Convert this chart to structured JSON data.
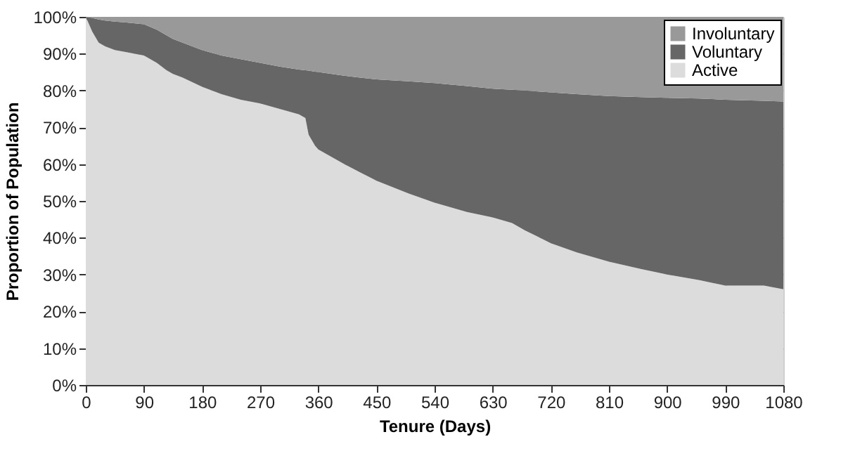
{
  "chart_data": {
    "type": "area",
    "stacked": true,
    "xlabel": "Tenure (Days)",
    "ylabel": "Proportion of Population",
    "x": [
      0,
      10,
      20,
      30,
      45,
      60,
      90,
      110,
      125,
      135,
      150,
      180,
      210,
      240,
      270,
      300,
      330,
      340,
      345,
      355,
      360,
      400,
      450,
      500,
      540,
      590,
      630,
      660,
      680,
      720,
      760,
      810,
      860,
      900,
      950,
      990,
      1050,
      1080
    ],
    "series": [
      {
        "name": "Active",
        "color": "#dcdcdc",
        "values": [
          100,
          96,
          93,
          92,
          91,
          90.5,
          89.5,
          87.5,
          85.5,
          84.5,
          83.5,
          81,
          79,
          77.5,
          76.5,
          75,
          73.5,
          72.5,
          68,
          65,
          64,
          60,
          55.5,
          52,
          49.5,
          47,
          45.5,
          44,
          42,
          38.5,
          36,
          33.5,
          31.5,
          30,
          28.5,
          27,
          27,
          26
        ]
      },
      {
        "name": "Voluntary",
        "color": "#666666",
        "values": [
          0,
          3.7,
          6.3,
          7,
          7.7,
          8,
          8.5,
          9,
          9.5,
          9.5,
          9.5,
          10,
          10.5,
          11,
          11,
          11.5,
          12.2,
          13,
          17.4,
          20.1,
          21,
          24,
          27.5,
          30.5,
          32.5,
          34.2,
          35,
          36.2,
          38,
          41,
          43,
          45,
          46.7,
          48,
          49.3,
          50.5,
          50.2,
          51
        ]
      },
      {
        "name": "Involuntary",
        "color": "#999999",
        "values": [
          0,
          0.3,
          0.7,
          1,
          1.3,
          1.5,
          2,
          3.5,
          5,
          6,
          7,
          9,
          10.5,
          11.5,
          12.5,
          13.5,
          14.3,
          14.5,
          14.6,
          14.9,
          15,
          16,
          17,
          17.5,
          18,
          18.8,
          19.5,
          19.8,
          20,
          20.5,
          21,
          21.5,
          21.8,
          22,
          22.2,
          22.5,
          22.8,
          23
        ]
      }
    ],
    "xlim": [
      0,
      1080
    ],
    "xticks": [
      0,
      90,
      180,
      270,
      360,
      450,
      540,
      630,
      720,
      810,
      900,
      990,
      1080
    ],
    "ylim": [
      0,
      100
    ],
    "yticks": [
      {
        "value": 0,
        "label": "0%"
      },
      {
        "value": 10,
        "label": "10%"
      },
      {
        "value": 20,
        "label": "20%"
      },
      {
        "value": 30,
        "label": "30%"
      },
      {
        "value": 40,
        "label": "40%"
      },
      {
        "value": 50,
        "label": "50%"
      },
      {
        "value": 60,
        "label": "60%"
      },
      {
        "value": 70,
        "label": "70%"
      },
      {
        "value": 80,
        "label": "80%"
      },
      {
        "value": 90,
        "label": "90%"
      },
      {
        "value": 100,
        "label": "100%"
      }
    ],
    "grid": true,
    "legend": "top right"
  }
}
